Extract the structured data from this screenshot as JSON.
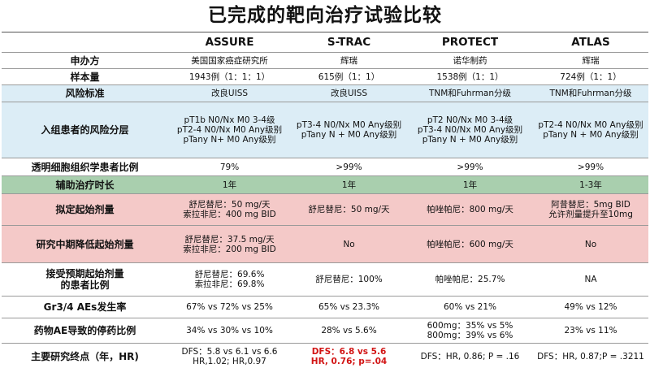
{
  "title": "已完成的靶向治疗试验比较",
  "trials": [
    "ASSURE",
    "S-TRAC",
    "PROTECT",
    "ATLAS"
  ],
  "rows": [
    {
      "label": "申办方",
      "cells": [
        "美国国家癌症研究所",
        "辉瑞",
        "诺华制药",
        "辉瑞"
      ]
    },
    {
      "label": "样本量",
      "cells": [
        "1943例（1：1：1）",
        "615例（1：1）",
        "1538例（1：1）",
        "724例（1：1）"
      ]
    },
    {
      "label": "风险标准",
      "cells": [
        "改良UISS",
        "改良UISS",
        "TNM和Fuhrman分级",
        "TNM和Fuhrman分级"
      ]
    },
    {
      "label": "入组患者的风险分层",
      "cells": [
        "pT1b N0/Nx M0 3-4级\npT2-4 N0/Nx M0 Any级别\npTany N+ M0 Any级别",
        "pT3-4 N0/Nx M0 Any级别\npTany N + M0 Any级别",
        "pT2 N0/Nx M0 3-4级\npT3-4 N0/Nx M0 Any级别\npTany N + M0 Any级别",
        "pT2-4 N0/Nx M0 Any级别\npTany N + M0 Any级别"
      ]
    },
    {
      "label": "透明细胞组织学患者比例",
      "cells": [
        "79%",
        ">99%",
        ">99%",
        ">99%"
      ]
    },
    {
      "label": "辅助治疗时长",
      "cells": [
        "1年",
        "1年",
        "1年",
        "1-3年"
      ]
    },
    {
      "label": "拟定起始剂量",
      "cells": [
        "舒尼替尼：50 mg/天\n索拉非尼：400 mg BID",
        "舒尼替尼：50 mg/天",
        "帕唑帕尼：800 mg/天",
        "阿昔替尼：5mg BID\n允许剂量提升至10mg"
      ]
    },
    {
      "label": "研究中期降低起始剂量",
      "cells": [
        "舒尼替尼：37.5 mg/天\n索拉非尼：200 mg BID",
        "No",
        "帕唑帕尼：600 mg/天",
        "No"
      ]
    },
    {
      "label": "接受预期起始剂量\n的患者比例",
      "cells": [
        "舒尼替尼：69.6%\n索拉非尼：69.8%",
        "舒尼替尼：100%",
        "帕唑帕尼：25.7%",
        "NA"
      ]
    },
    {
      "label": "Gr3/4 AEs发生率",
      "cells": [
        "67% vs 72% vs 25%",
        "65% vs 23.3%",
        "60% vs 21%",
        "49% vs 12%"
      ]
    },
    {
      "label": "药物AE导致的停药比例",
      "cells": [
        "34% vs 30% vs 10%",
        "28% vs 5.6%",
        "600mg：35% vs 5%\n800mg：39% vs 6%",
        "23% vs 11%"
      ]
    },
    {
      "label": "主要研究终点（年，HR)",
      "cells": [
        "DFS：5.8 vs 6.1 vs 6.6\nHR,1.02; HR,0.97",
        "DFS：6.8 vs 5.6\nHR, 0.76; p=.04",
        "DFS：HR, 0.86; P = .16",
        "DFS：HR, 0.87;P = .3211"
      ]
    }
  ],
  "colors": {
    "blue": "#dcedf6",
    "green": "#a9cfae",
    "pink": "#f4c9c8",
    "highlight": "#d21515"
  }
}
